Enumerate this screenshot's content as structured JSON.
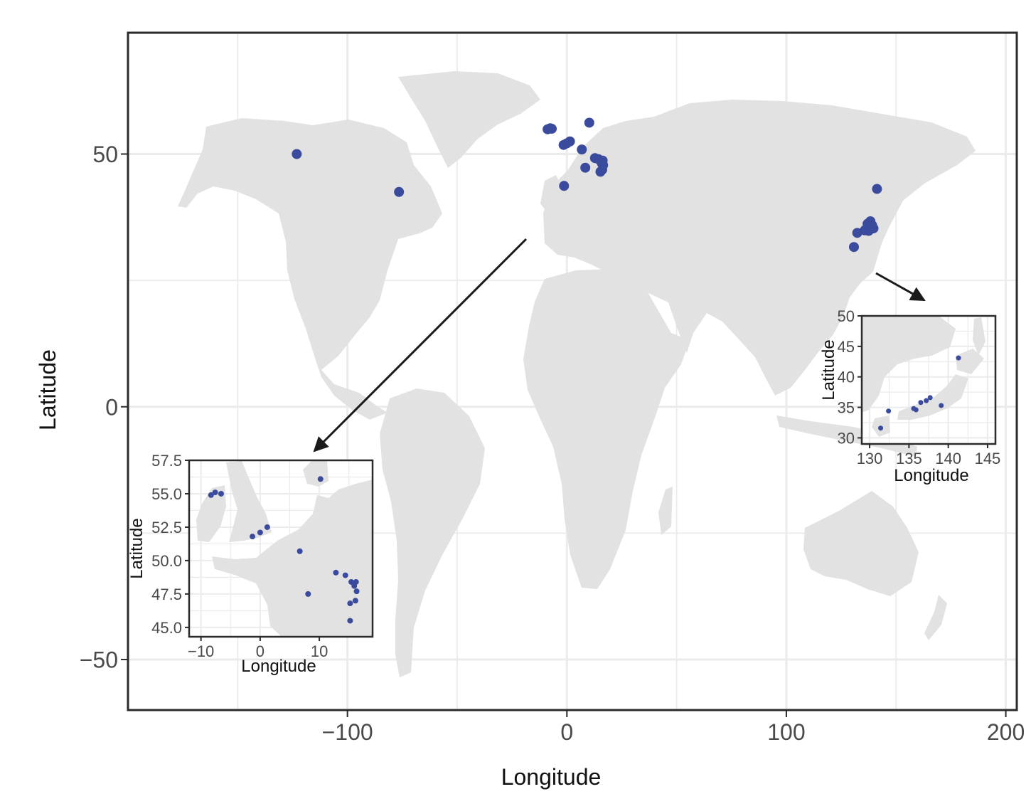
{
  "colors": {
    "land": "#e2e2e2",
    "grid": "#ebebeb",
    "point": "#3a4a9c",
    "frame": "#2b2b2b",
    "arrow": "#1a1a1a"
  },
  "main_map": {
    "xlabel": "Longitude",
    "ylabel": "Latitude",
    "xlim": [
      -200,
      205
    ],
    "ylim": [
      -60,
      74
    ],
    "x_ticks": [
      {
        "value": -100,
        "label": "−100"
      },
      {
        "value": 0,
        "label": "0"
      },
      {
        "value": 100,
        "label": "100"
      },
      {
        "value": 200,
        "label": "200"
      }
    ],
    "y_ticks": [
      {
        "value": 50,
        "label": "50"
      },
      {
        "value": 0,
        "label": "0"
      },
      {
        "value": -50,
        "label": "−50"
      }
    ],
    "points": [
      {
        "lon": -123.1,
        "lat": 50.0
      },
      {
        "lon": -76.5,
        "lat": 42.5
      },
      {
        "lon": -8.8,
        "lat": 54.9
      },
      {
        "lon": -7.6,
        "lat": 55.1
      },
      {
        "lon": -6.9,
        "lat": 55.0
      },
      {
        "lon": -1.5,
        "lat": 51.8
      },
      {
        "lon": -0.1,
        "lat": 52.1
      },
      {
        "lon": 1.4,
        "lat": 52.5
      },
      {
        "lon": 6.8,
        "lat": 50.9
      },
      {
        "lon": 10.2,
        "lat": 56.2
      },
      {
        "lon": 8.4,
        "lat": 47.3
      },
      {
        "lon": 12.8,
        "lat": 49.2
      },
      {
        "lon": 14.3,
        "lat": 49.0
      },
      {
        "lon": 15.6,
        "lat": 48.6
      },
      {
        "lon": 16.3,
        "lat": 48.7
      },
      {
        "lon": 15.9,
        "lat": 48.2
      },
      {
        "lon": 16.5,
        "lat": 47.8
      },
      {
        "lon": 16.1,
        "lat": 46.9
      },
      {
        "lon": 15.3,
        "lat": 46.5
      },
      {
        "lon": -1.3,
        "lat": 43.7
      },
      {
        "lon": 141.3,
        "lat": 43.1
      },
      {
        "lon": 139.1,
        "lat": 35.9
      },
      {
        "lon": 138.3,
        "lat": 36.7
      },
      {
        "lon": 137.0,
        "lat": 36.2
      },
      {
        "lon": 135.7,
        "lat": 34.9
      },
      {
        "lon": 136.0,
        "lat": 35.0
      },
      {
        "lon": 139.7,
        "lat": 35.3
      },
      {
        "lon": 132.3,
        "lat": 34.4
      },
      {
        "lon": 130.8,
        "lat": 31.6
      },
      {
        "lon": 137.5,
        "lat": 34.8
      }
    ]
  },
  "inset_europe": {
    "xlabel": "Longitude",
    "ylabel": "Latitude",
    "xlim": [
      -12,
      19
    ],
    "ylim": [
      44.3,
      57.5
    ],
    "x_ticks": [
      {
        "value": -10,
        "label": "−10"
      },
      {
        "value": 0,
        "label": "0"
      },
      {
        "value": 10,
        "label": "10"
      }
    ],
    "y_ticks": [
      {
        "value": 57.5,
        "label": "57.5"
      },
      {
        "value": 55.0,
        "label": "55.0"
      },
      {
        "value": 52.5,
        "label": "52.5"
      },
      {
        "value": 50.0,
        "label": "50.0"
      },
      {
        "value": 47.5,
        "label": "47.5"
      },
      {
        "value": 45.0,
        "label": "45.0"
      }
    ],
    "points": [
      {
        "lon": -8.3,
        "lat": 54.9
      },
      {
        "lon": -7.6,
        "lat": 55.1
      },
      {
        "lon": -6.6,
        "lat": 55.0
      },
      {
        "lon": -1.3,
        "lat": 51.8
      },
      {
        "lon": 0.0,
        "lat": 52.1
      },
      {
        "lon": 1.2,
        "lat": 52.5
      },
      {
        "lon": 6.7,
        "lat": 50.7
      },
      {
        "lon": 10.2,
        "lat": 56.1
      },
      {
        "lon": 8.1,
        "lat": 47.5
      },
      {
        "lon": 12.8,
        "lat": 49.1
      },
      {
        "lon": 14.4,
        "lat": 48.9
      },
      {
        "lon": 15.4,
        "lat": 48.4
      },
      {
        "lon": 16.2,
        "lat": 48.4
      },
      {
        "lon": 15.9,
        "lat": 48.1
      },
      {
        "lon": 16.3,
        "lat": 47.7
      },
      {
        "lon": 16.1,
        "lat": 47.0
      },
      {
        "lon": 15.2,
        "lat": 46.8
      },
      {
        "lon": 15.2,
        "lat": 45.5
      }
    ]
  },
  "inset_japan": {
    "xlabel": "Longitude",
    "ylabel": "Latitude",
    "xlim": [
      129,
      146
    ],
    "ylim": [
      29,
      50
    ],
    "x_ticks": [
      {
        "value": 130,
        "label": "130"
      },
      {
        "value": 135,
        "label": "135"
      },
      {
        "value": 140,
        "label": "140"
      },
      {
        "value": 145,
        "label": "145"
      }
    ],
    "y_ticks": [
      {
        "value": 50,
        "label": "50"
      },
      {
        "value": 45,
        "label": "45"
      },
      {
        "value": 40,
        "label": "40"
      },
      {
        "value": 35,
        "label": "35"
      },
      {
        "value": 30,
        "label": "30"
      }
    ],
    "points": [
      {
        "lon": 141.3,
        "lat": 43.1
      },
      {
        "lon": 139.1,
        "lat": 35.3
      },
      {
        "lon": 137.7,
        "lat": 36.6
      },
      {
        "lon": 137.2,
        "lat": 36.1
      },
      {
        "lon": 136.5,
        "lat": 35.8
      },
      {
        "lon": 135.6,
        "lat": 34.8
      },
      {
        "lon": 135.9,
        "lat": 34.6
      },
      {
        "lon": 132.4,
        "lat": 34.4
      },
      {
        "lon": 131.4,
        "lat": 31.6
      }
    ]
  }
}
